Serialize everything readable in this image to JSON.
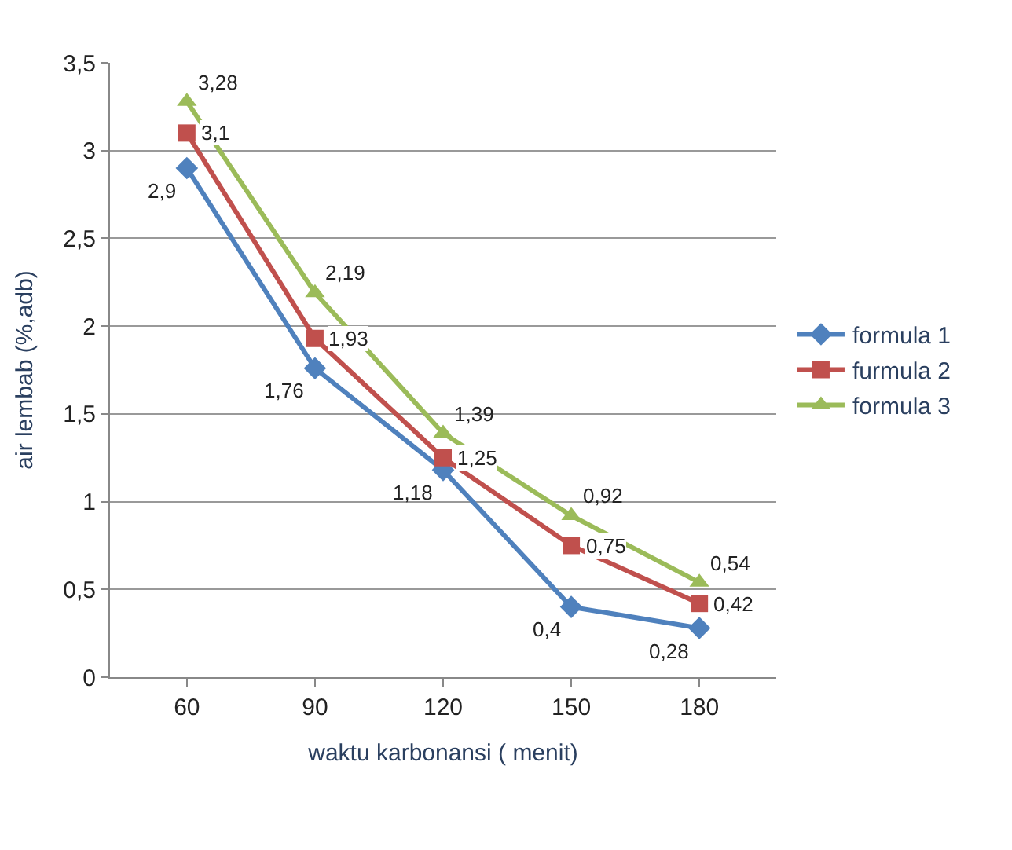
{
  "chart_data": {
    "type": "line",
    "xlabel": "waktu karbonansi ( menit)",
    "ylabel": "air lembab (%,adb)",
    "categories": [
      "60",
      "90",
      "120",
      "150",
      "180"
    ],
    "series": [
      {
        "name": "formula 1",
        "color": "#4f81bd",
        "marker": "diamond",
        "values": [
          2.9,
          1.76,
          1.18,
          0.4,
          0.28
        ],
        "value_labels": [
          "2,9",
          "1,76",
          "1,18",
          "0,4",
          "0,28"
        ]
      },
      {
        "name": "furmula 2",
        "color": "#c0504d",
        "marker": "square",
        "values": [
          3.1,
          1.93,
          1.25,
          0.75,
          0.42
        ],
        "value_labels": [
          "3,1",
          "1,93",
          "1,25",
          "0,75",
          "0,42"
        ]
      },
      {
        "name": "formula 3",
        "color": "#9bbb59",
        "marker": "triangle",
        "values": [
          3.28,
          2.19,
          1.39,
          0.92,
          0.54
        ],
        "value_labels": [
          "3,28",
          "2,19",
          "1,39",
          "0,92",
          "0,54"
        ]
      }
    ],
    "ylim": [
      0,
      3.5
    ],
    "yticks": [
      0,
      {
        "value": 0.5,
        "label": "0,5"
      },
      1,
      {
        "value": 1.5,
        "label": "1,5"
      },
      2,
      {
        "value": 2.5,
        "label": "2,5"
      },
      3,
      {
        "value": 3.5,
        "label": "3,5"
      }
    ],
    "grid": "y",
    "legend": "right"
  }
}
